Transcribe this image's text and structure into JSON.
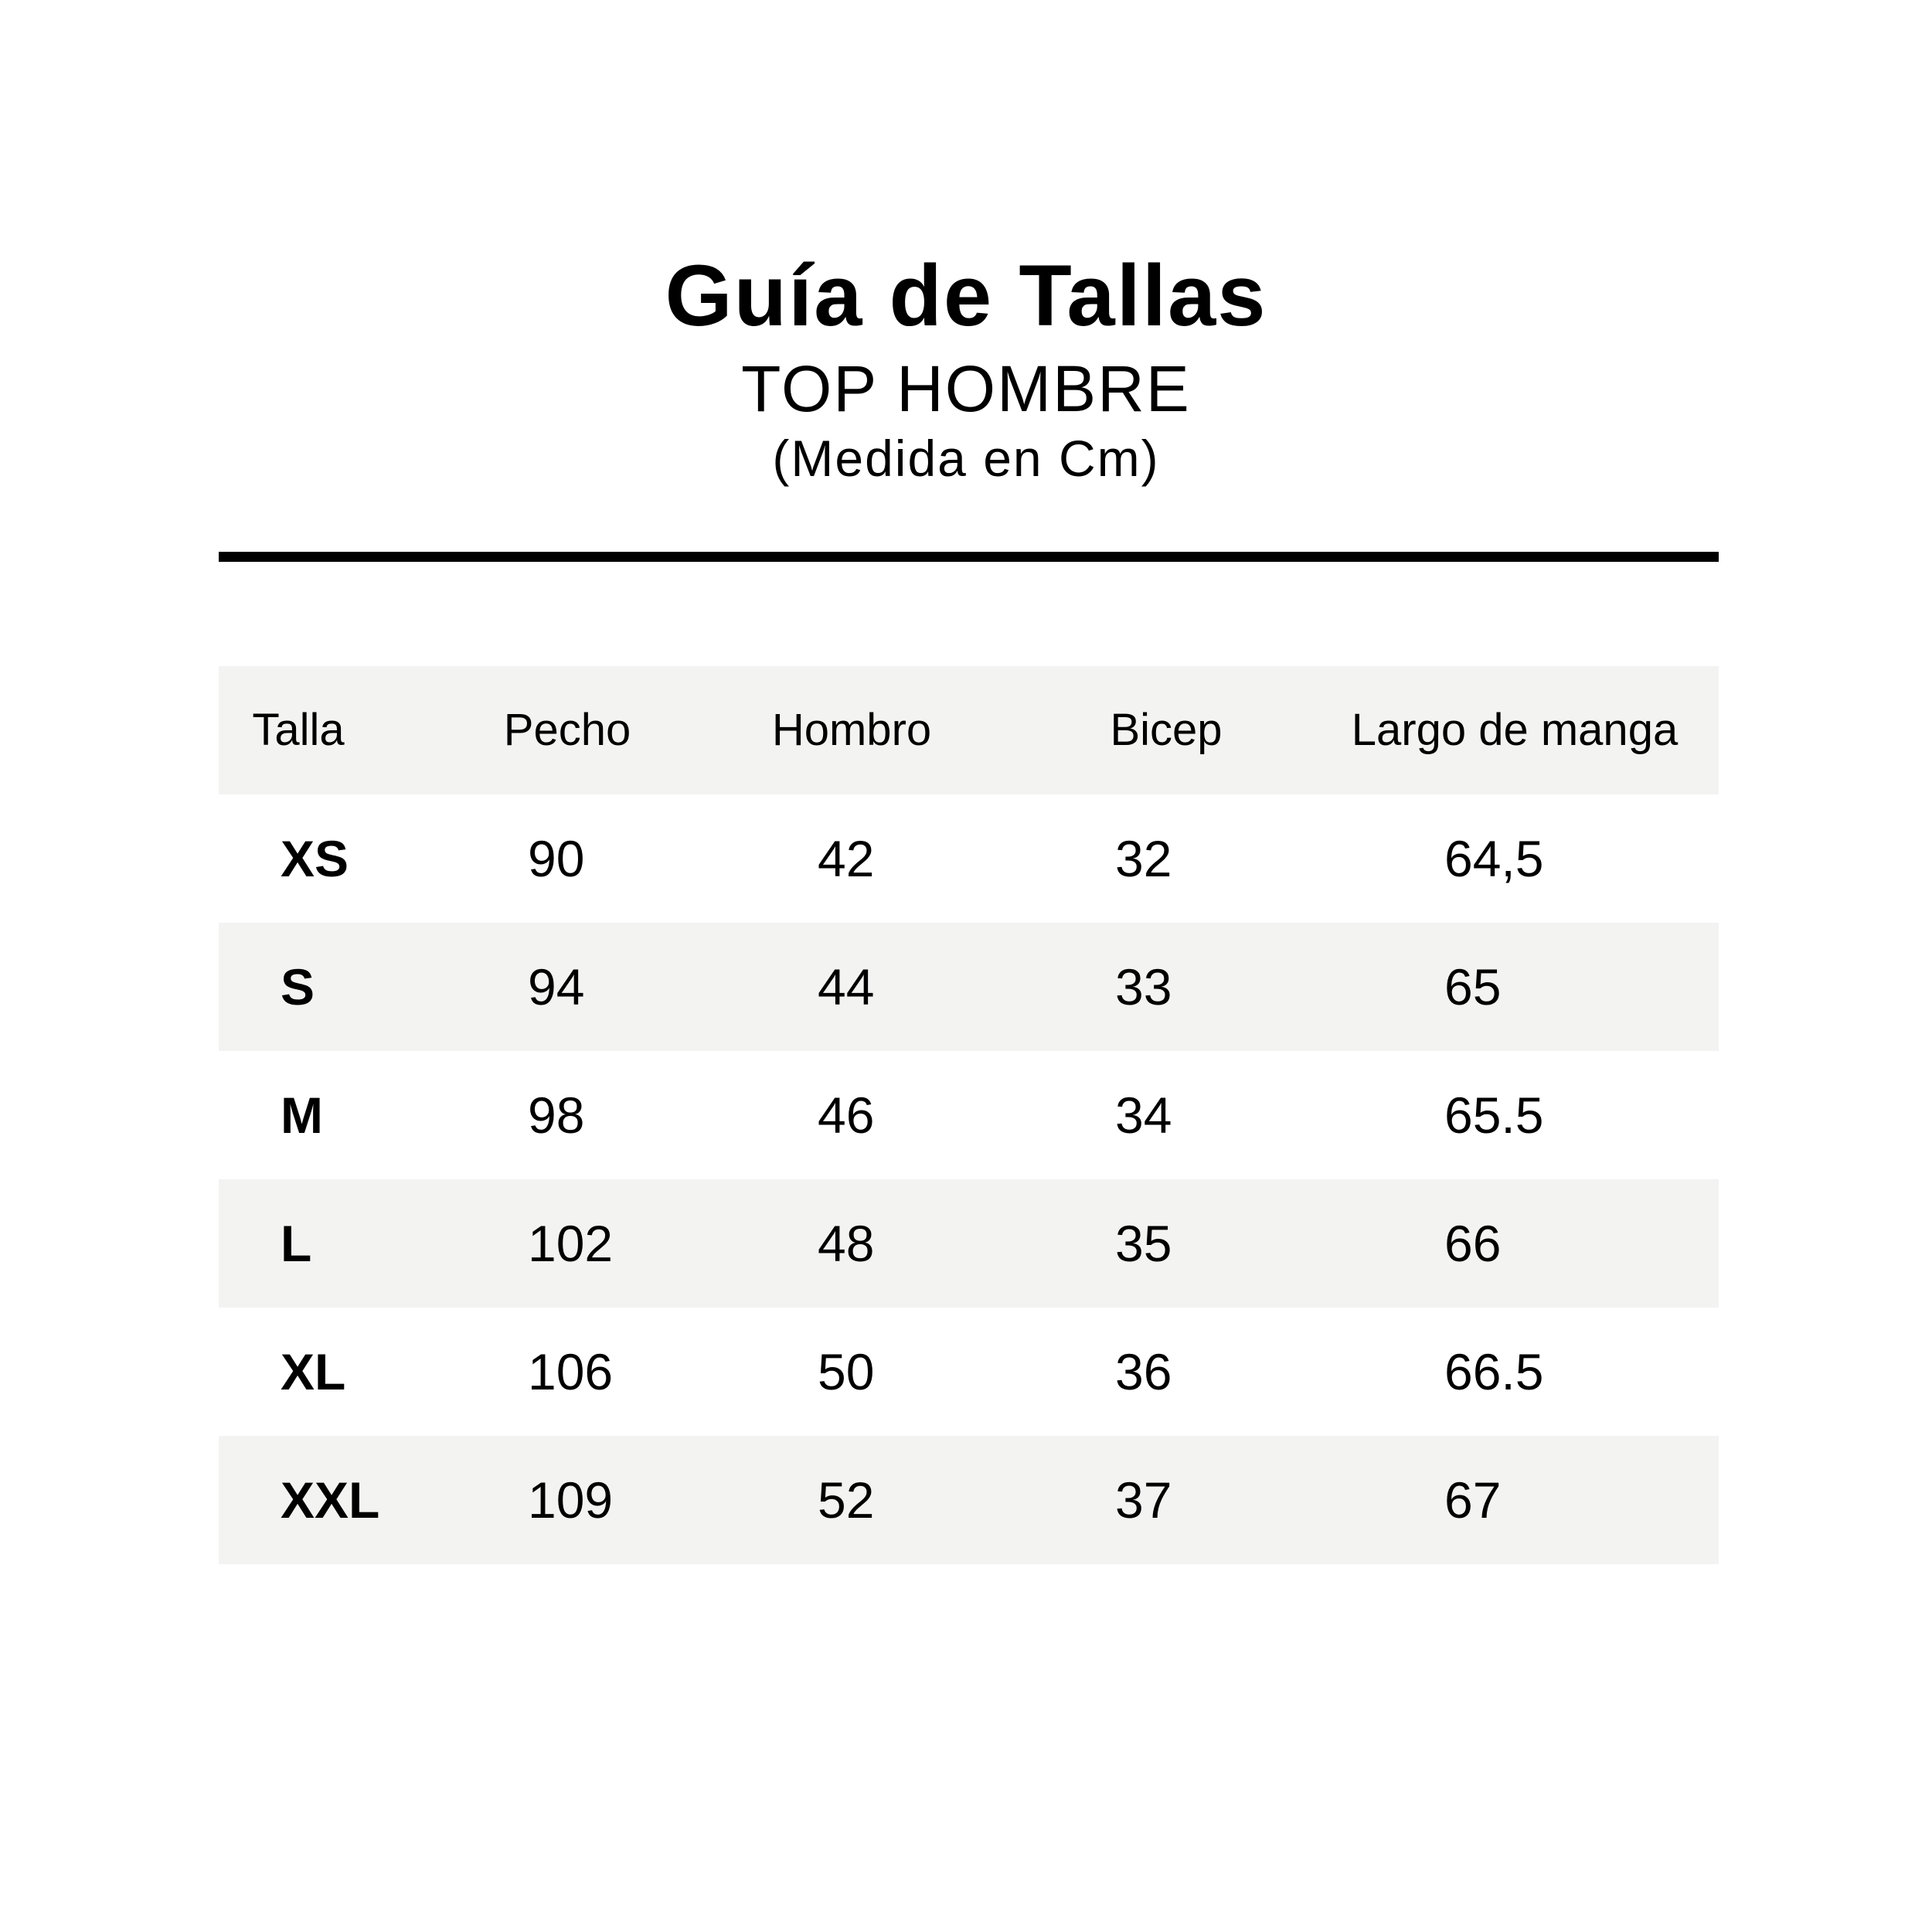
{
  "header": {
    "title": "Guía de Tallas",
    "subtitle": "TOP HOMBRE",
    "unit": "(Medida en Cm)"
  },
  "colors": {
    "row_alt": "#f3f3f2",
    "text": "#000000"
  },
  "table": {
    "columns": [
      "Talla",
      "Pecho",
      "Hombro",
      "Bicep",
      "Largo de manga"
    ],
    "rows": [
      [
        "XS",
        "90",
        "42",
        "32",
        "64,5"
      ],
      [
        "S",
        "94",
        "44",
        "33",
        "65"
      ],
      [
        "M",
        "98",
        "46",
        "34",
        "65.5"
      ],
      [
        "L",
        "102",
        "48",
        "35",
        "66"
      ],
      [
        "XL",
        "106",
        "50",
        "36",
        "66.5"
      ],
      [
        "XXL",
        "109",
        "52",
        "37",
        "67"
      ]
    ]
  }
}
